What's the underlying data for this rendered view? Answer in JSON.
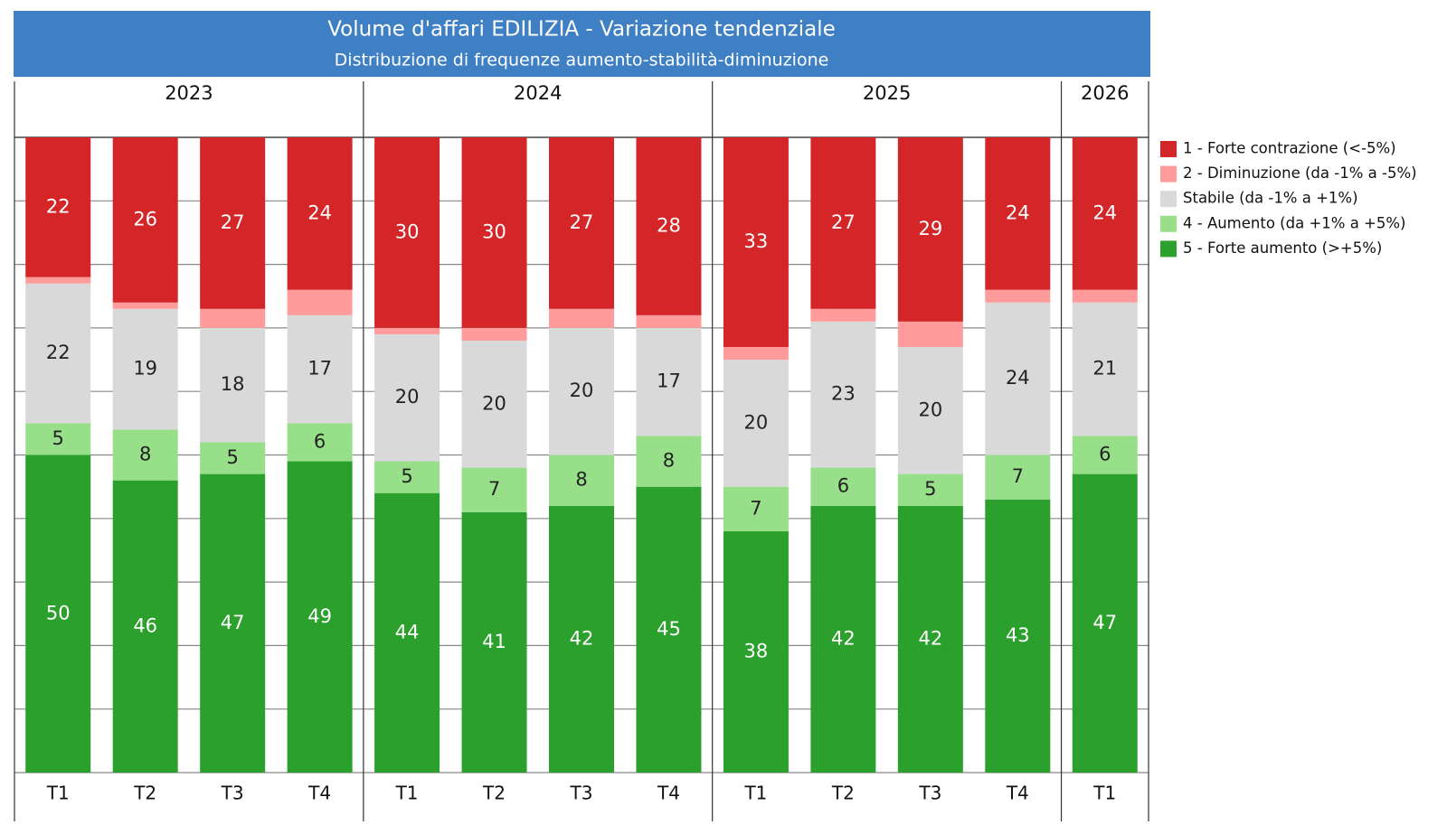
{
  "chart_data": {
    "type": "stacked_bar",
    "title": "Volume d'affari EDILIZIA - Variazione tendenziale",
    "subtitle": "Distribuzione di frequenze aumento-stabilità-diminuzione",
    "groups": [
      {
        "name": "2023",
        "categories": [
          "T1",
          "T2",
          "T3",
          "T4"
        ]
      },
      {
        "name": "2024",
        "categories": [
          "T1",
          "T2",
          "T3",
          "T4"
        ]
      },
      {
        "name": "2025",
        "categories": [
          "T1",
          "T2",
          "T3",
          "T4"
        ]
      },
      {
        "name": "2026",
        "categories": [
          "T1"
        ]
      }
    ],
    "series": [
      {
        "name": "1 - Forte contrazione (<-5%)",
        "color": "#d42628",
        "label_color": "#ffffff",
        "show_labels": true,
        "values": [
          22,
          26,
          27,
          24,
          30,
          30,
          27,
          28,
          33,
          27,
          29,
          24,
          24
        ]
      },
      {
        "name": "2 - Diminuzione (da -1% a -5%)",
        "color": "#ff9b9b",
        "label_color": "#000000",
        "show_labels": false,
        "values": [
          1,
          1,
          3,
          4,
          1,
          2,
          3,
          2,
          2,
          2,
          4,
          2,
          2
        ]
      },
      {
        "name": "Stabile (da -1% a +1%)",
        "color": "#d9d9d9",
        "label_color": "#222222",
        "show_labels": true,
        "values": [
          22,
          19,
          18,
          17,
          20,
          20,
          20,
          17,
          20,
          23,
          20,
          24,
          21
        ]
      },
      {
        "name": "4 - Aumento (da +1% a +5%)",
        "color": "#98df8a",
        "label_color": "#222222",
        "show_labels": true,
        "values": [
          5,
          8,
          5,
          6,
          5,
          7,
          8,
          8,
          7,
          6,
          5,
          7,
          6
        ]
      },
      {
        "name": "5 - Forte aumento (>+5%)",
        "color": "#2ca02c",
        "label_color": "#ffffff",
        "show_labels": true,
        "values": [
          50,
          46,
          47,
          49,
          44,
          41,
          42,
          45,
          38,
          42,
          42,
          43,
          47
        ]
      }
    ],
    "ylim": [
      0,
      100
    ],
    "yticks": [
      0,
      10,
      20,
      30,
      40,
      50,
      60,
      70,
      80,
      90,
      100
    ],
    "grid": true
  }
}
